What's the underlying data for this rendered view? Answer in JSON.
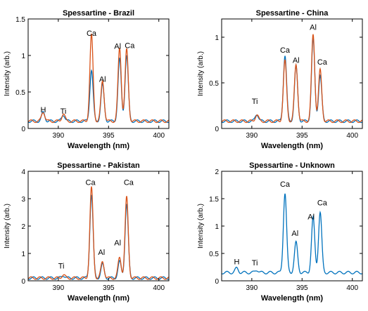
{
  "chart_data": [
    {
      "type": "line",
      "title": "Spessartine - Brazil",
      "xlabel": "Wavelength (nm)",
      "ylabel": "Intensity (arb.)",
      "xlim": [
        387,
        401
      ],
      "ylim": [
        0,
        1.5
      ],
      "xticks": [
        390,
        395,
        400
      ],
      "yticks": [
        0,
        0.5,
        1,
        1.5
      ],
      "series": [
        {
          "color": "#0072BD",
          "baseline": 0.1,
          "peaks": [
            [
              388.5,
              0.12
            ],
            [
              390.5,
              0.09
            ],
            [
              393.3,
              0.7
            ],
            [
              394.4,
              0.5
            ],
            [
              396.1,
              0.85
            ],
            [
              396.8,
              0.9
            ]
          ]
        },
        {
          "color": "#D95319",
          "baseline": 0.1,
          "peaks": [
            [
              388.5,
              0.13
            ],
            [
              390.5,
              0.1
            ],
            [
              393.3,
              1.18
            ],
            [
              394.4,
              0.55
            ],
            [
              396.1,
              1.0
            ],
            [
              396.8,
              0.98
            ]
          ]
        }
      ],
      "annotations": [
        {
          "text": "H",
          "x": 388.5,
          "y": 0.22
        },
        {
          "text": "Ti",
          "x": 390.5,
          "y": 0.2
        },
        {
          "text": "Ca",
          "x": 393.3,
          "y": 1.27
        },
        {
          "text": "Al",
          "x": 394.4,
          "y": 0.64
        },
        {
          "text": "Al",
          "x": 395.9,
          "y": 1.09
        },
        {
          "text": "Ca",
          "x": 397.1,
          "y": 1.1
        }
      ]
    },
    {
      "type": "line",
      "title": "Spessartine - China",
      "xlabel": "Wavelength (nm)",
      "ylabel": "Intensity (arb.)",
      "xlim": [
        387,
        401
      ],
      "ylim": [
        0,
        1.2
      ],
      "xticks": [
        390,
        395,
        400
      ],
      "yticks": [
        0,
        0.5,
        1
      ],
      "series": [
        {
          "color": "#0072BD",
          "baseline": 0.08,
          "peaks": [
            [
              390.5,
              0.08
            ],
            [
              393.3,
              0.72
            ],
            [
              394.4,
              0.6
            ],
            [
              396.1,
              0.9
            ],
            [
              396.8,
              0.5
            ]
          ]
        },
        {
          "color": "#D95319",
          "baseline": 0.08,
          "peaks": [
            [
              390.5,
              0.07
            ],
            [
              393.3,
              0.66
            ],
            [
              394.4,
              0.62
            ],
            [
              396.1,
              0.95
            ],
            [
              396.8,
              0.56
            ]
          ]
        }
      ],
      "annotations": [
        {
          "text": "Ti",
          "x": 390.3,
          "y": 0.27
        },
        {
          "text": "Ca",
          "x": 393.3,
          "y": 0.83
        },
        {
          "text": "Al",
          "x": 394.4,
          "y": 0.72
        },
        {
          "text": "Al",
          "x": 396.1,
          "y": 1.08
        },
        {
          "text": "Ca",
          "x": 397.0,
          "y": 0.7
        }
      ]
    },
    {
      "type": "line",
      "title": "Spessartine - Pakistan",
      "xlabel": "Wavelength (nm)",
      "ylabel": "Intensity (arb.)",
      "xlim": [
        387,
        401
      ],
      "ylim": [
        0,
        4
      ],
      "xticks": [
        390,
        395,
        400
      ],
      "yticks": [
        0,
        1,
        2,
        3,
        4
      ],
      "series": [
        {
          "color": "#0072BD",
          "baseline": 0.1,
          "peaks": [
            [
              390.5,
              0.1
            ],
            [
              393.3,
              3.05
            ],
            [
              394.4,
              0.5
            ],
            [
              396.1,
              0.6
            ],
            [
              396.8,
              2.7
            ]
          ]
        },
        {
          "color": "#D95319",
          "baseline": 0.1,
          "peaks": [
            [
              390.5,
              0.12
            ],
            [
              393.3,
              3.3
            ],
            [
              394.4,
              0.6
            ],
            [
              396.1,
              0.75
            ],
            [
              396.8,
              2.95
            ]
          ]
        }
      ],
      "annotations": [
        {
          "text": "Ti",
          "x": 390.3,
          "y": 0.45
        },
        {
          "text": "Ca",
          "x": 393.2,
          "y": 3.5
        },
        {
          "text": "Al",
          "x": 394.3,
          "y": 0.95
        },
        {
          "text": "Al",
          "x": 395.9,
          "y": 1.3
        },
        {
          "text": "Ca",
          "x": 397.0,
          "y": 3.5
        }
      ]
    },
    {
      "type": "line",
      "title": "Spessartine - Unknown",
      "xlabel": "Wavelength (nm)",
      "ylabel": "Intensity (arb.)",
      "xlim": [
        387,
        401
      ],
      "ylim": [
        0,
        2
      ],
      "xticks": [
        390,
        395,
        400
      ],
      "yticks": [
        0,
        0.5,
        1,
        1.5,
        2
      ],
      "series": [
        {
          "color": "#0072BD",
          "baseline": 0.15,
          "peaks": [
            [
              388.5,
              0.08
            ],
            [
              390.5,
              0.05
            ],
            [
              393.3,
              1.45
            ],
            [
              394.4,
              0.55
            ],
            [
              396.1,
              1.0
            ],
            [
              396.8,
              1.1
            ]
          ]
        }
      ],
      "annotations": [
        {
          "text": "H",
          "x": 388.5,
          "y": 0.3
        },
        {
          "text": "Ti",
          "x": 390.3,
          "y": 0.28
        },
        {
          "text": "Ca",
          "x": 393.3,
          "y": 1.72
        },
        {
          "text": "Al",
          "x": 394.3,
          "y": 0.82
        },
        {
          "text": "Al",
          "x": 395.9,
          "y": 1.12
        },
        {
          "text": "Ca",
          "x": 397.0,
          "y": 1.38
        }
      ]
    }
  ]
}
